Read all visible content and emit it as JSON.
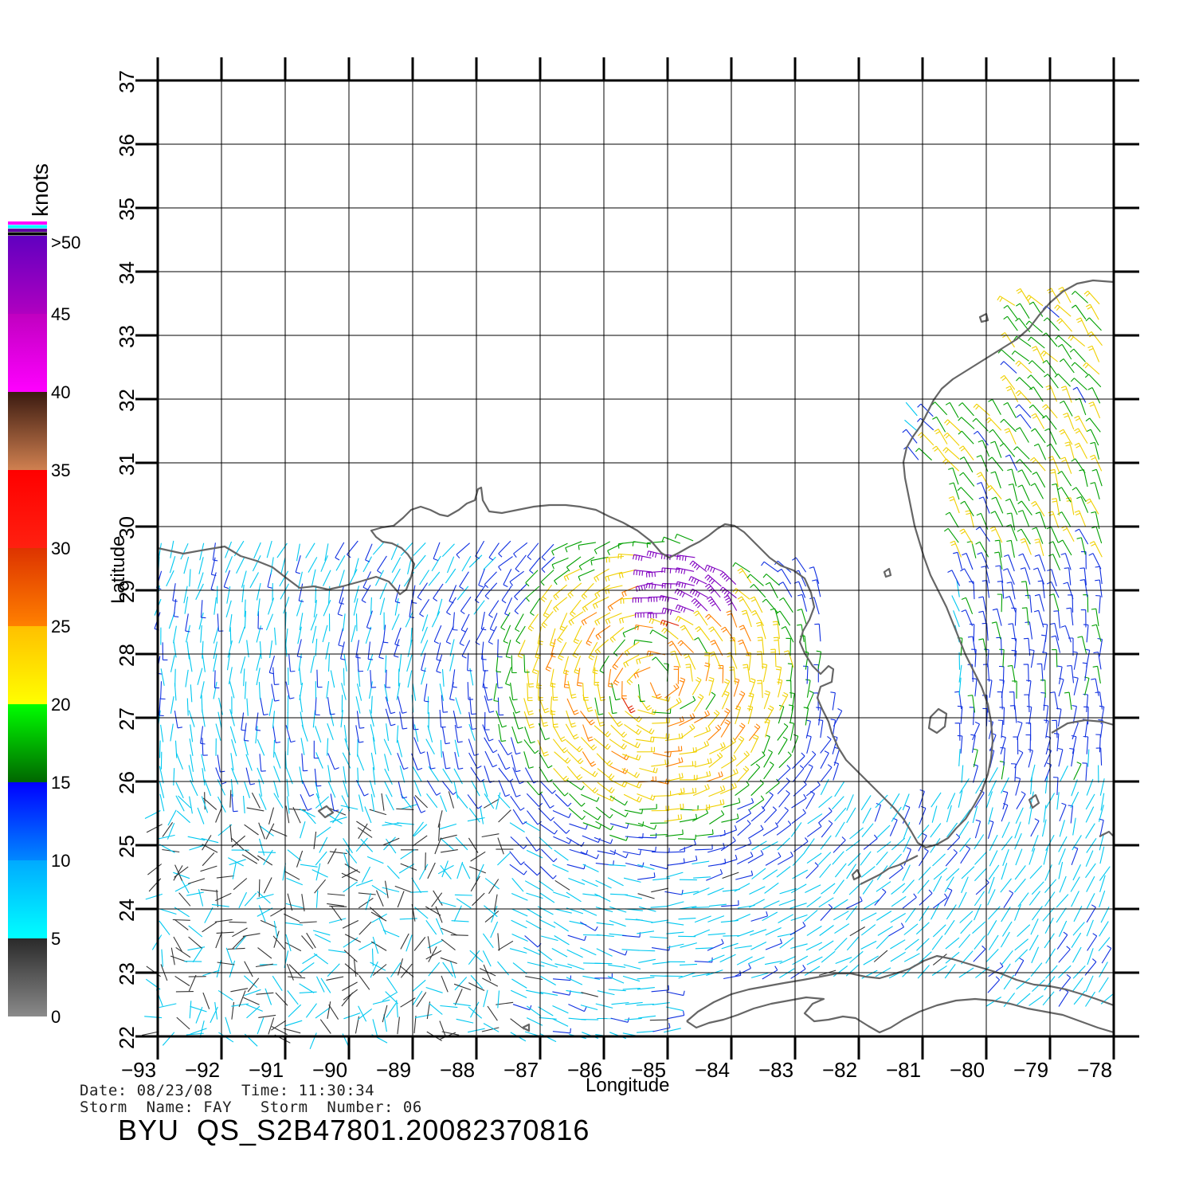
{
  "map": {
    "xlabel": "Longitude",
    "ylabel": "Latitude",
    "lon_range": [
      -93,
      -78
    ],
    "lat_range": [
      22,
      37
    ],
    "lon_ticks": [
      "−93",
      "−92",
      "−91",
      "−90",
      "−89",
      "−88",
      "−87",
      "−86",
      "−85",
      "−84",
      "−83",
      "−82",
      "−81",
      "−80",
      "−79",
      "−78"
    ],
    "lat_ticks": [
      "22",
      "23",
      "24",
      "25",
      "26",
      "27",
      "28",
      "29",
      "30",
      "31",
      "32",
      "33",
      "34",
      "35",
      "36",
      "37"
    ],
    "grid": true,
    "coastline_color": "#666666",
    "storm_center_lonlat": [
      -85.2,
      27.6
    ]
  },
  "colorbar": {
    "unit": "knots",
    "bands": [
      {
        "label": "0",
        "range": [
          0,
          5
        ],
        "from": "#8a8a8a",
        "to": "#2a2a2a"
      },
      {
        "label": "5",
        "range": [
          5,
          10
        ],
        "from": "#00ffff",
        "to": "#00aaff"
      },
      {
        "label": "10",
        "range": [
          10,
          15
        ],
        "from": "#0088ff",
        "to": "#0000ff"
      },
      {
        "label": "15",
        "range": [
          15,
          20
        ],
        "from": "#006600",
        "to": "#00ff00"
      },
      {
        "label": "20",
        "range": [
          20,
          25
        ],
        "from": "#ffff00",
        "to": "#ffc000"
      },
      {
        "label": "25",
        "range": [
          25,
          30
        ],
        "from": "#ff8000",
        "to": "#dd3300"
      },
      {
        "label": "30",
        "range": [
          30,
          35
        ],
        "from": "#ff2010",
        "to": "#ff0000"
      },
      {
        "label": "35",
        "range": [
          35,
          40
        ],
        "from": "#d08050",
        "to": "#3a1a10"
      },
      {
        "label": "40",
        "range": [
          40,
          45
        ],
        "from": "#ff00ff",
        "to": "#c000c0"
      },
      {
        "label": "45",
        "range": [
          45,
          50
        ],
        "from": "#b000c0",
        "to": "#6000c0"
      }
    ],
    "top_label": ">50",
    "top_stripe_colors": [
      "#ff00ff",
      "#00ffff",
      "#6000a0",
      "#000000"
    ]
  },
  "info": {
    "line1": "Date: 08/23/08   Time: 11:30:34",
    "line2": "Storm  Name: FAY   Storm  Number: 06",
    "product": "BYU  QS_S2B47801.20082370816"
  }
}
